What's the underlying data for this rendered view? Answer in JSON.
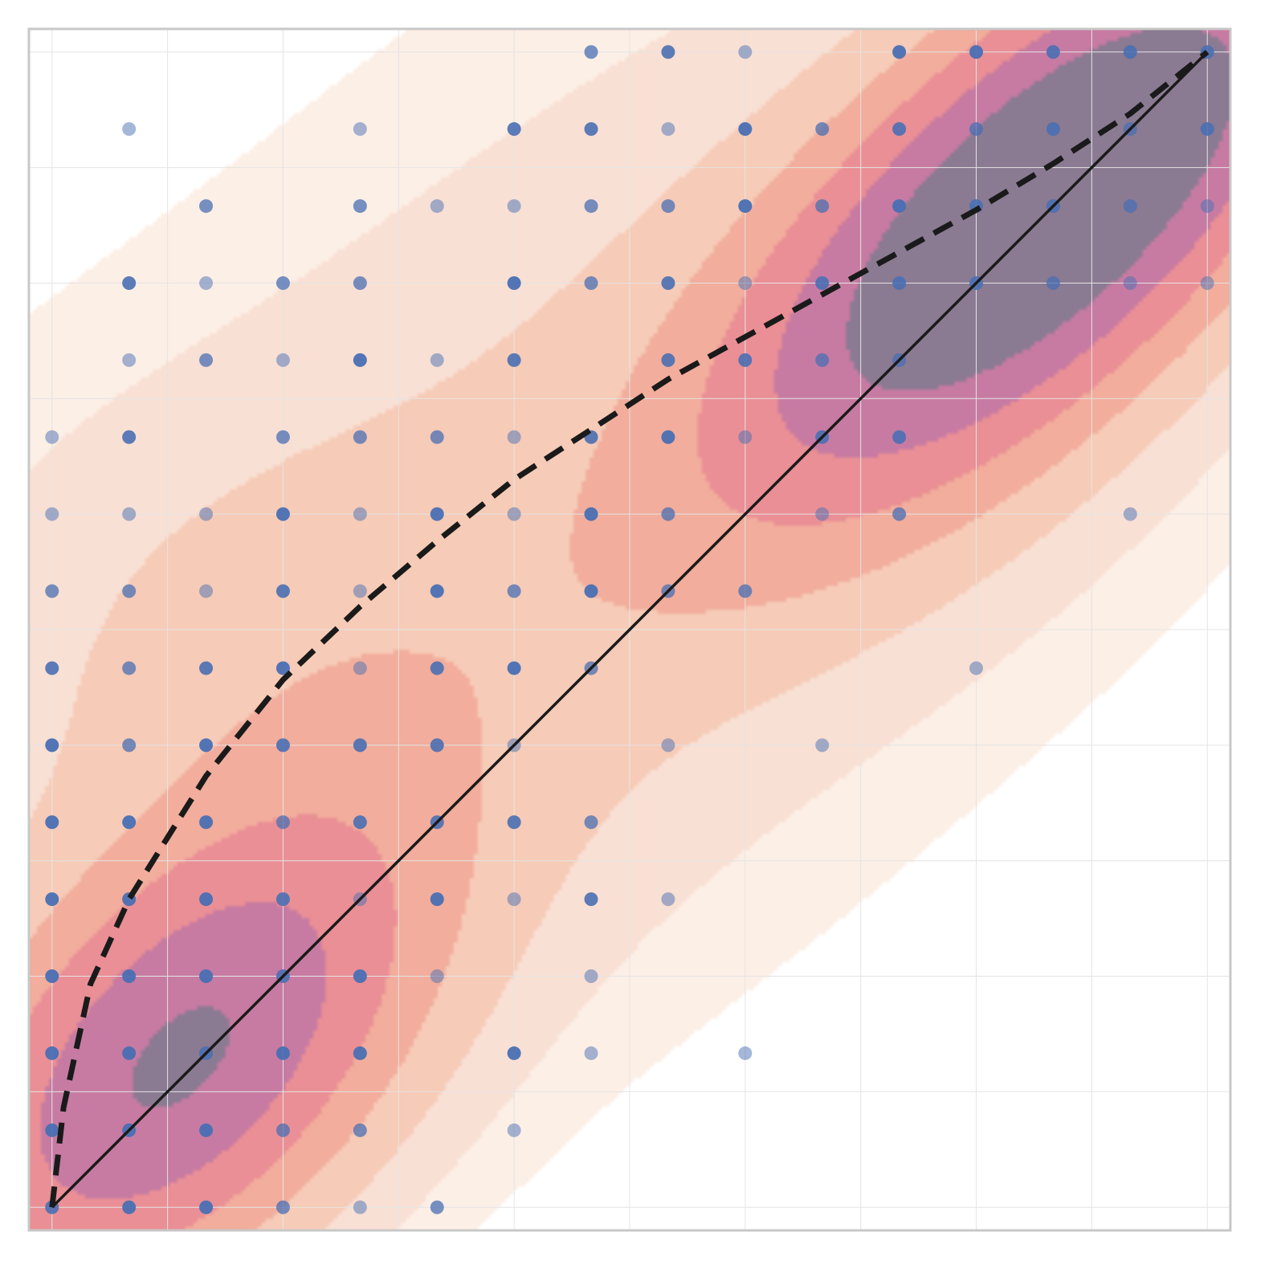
{
  "chart_data": {
    "type": "scatter",
    "title": "",
    "xlabel": "",
    "ylabel": "",
    "xlim": [
      -0.3,
      15.3
    ],
    "ylim": [
      -0.3,
      15.3
    ],
    "grid": true,
    "show_tick_labels": false,
    "colors": {
      "frame": "#c8c8c8",
      "grid": "#e4e4e4",
      "point": "#4a6fb3",
      "line": "#1a1a1a",
      "density_levels": [
        "#fcefe6",
        "#f9e0d4",
        "#f6cbb7",
        "#f2ad9c",
        "#ea8f95",
        "#c77ba2",
        "#8a7a92"
      ]
    },
    "points": [
      {
        "x": 7,
        "y": 15,
        "a": 0.75
      },
      {
        "x": 8,
        "y": 15,
        "a": 0.9
      },
      {
        "x": 9,
        "y": 15,
        "a": 0.5
      },
      {
        "x": 11,
        "y": 15,
        "a": 0.95
      },
      {
        "x": 12,
        "y": 15,
        "a": 0.95
      },
      {
        "x": 13,
        "y": 15,
        "a": 0.9
      },
      {
        "x": 14,
        "y": 15,
        "a": 0.9
      },
      {
        "x": 15,
        "y": 15,
        "a": 0.9
      },
      {
        "x": 1,
        "y": 14,
        "a": 0.5
      },
      {
        "x": 4,
        "y": 14,
        "a": 0.5
      },
      {
        "x": 6,
        "y": 14,
        "a": 0.9
      },
      {
        "x": 7,
        "y": 14,
        "a": 0.9
      },
      {
        "x": 8,
        "y": 14,
        "a": 0.5
      },
      {
        "x": 9,
        "y": 14,
        "a": 0.95
      },
      {
        "x": 10,
        "y": 14,
        "a": 0.75
      },
      {
        "x": 11,
        "y": 14,
        "a": 0.9
      },
      {
        "x": 12,
        "y": 14,
        "a": 0.75
      },
      {
        "x": 13,
        "y": 14,
        "a": 0.9
      },
      {
        "x": 14,
        "y": 14,
        "a": 0.75
      },
      {
        "x": 15,
        "y": 14,
        "a": 0.9
      },
      {
        "x": 2,
        "y": 13,
        "a": 0.75
      },
      {
        "x": 4,
        "y": 13,
        "a": 0.75
      },
      {
        "x": 5,
        "y": 13,
        "a": 0.5
      },
      {
        "x": 6,
        "y": 13,
        "a": 0.5
      },
      {
        "x": 7,
        "y": 13,
        "a": 0.75
      },
      {
        "x": 8,
        "y": 13,
        "a": 0.75
      },
      {
        "x": 9,
        "y": 13,
        "a": 0.95
      },
      {
        "x": 10,
        "y": 13,
        "a": 0.75
      },
      {
        "x": 11,
        "y": 13,
        "a": 0.95
      },
      {
        "x": 12,
        "y": 13,
        "a": 0.9
      },
      {
        "x": 13,
        "y": 13,
        "a": 0.9
      },
      {
        "x": 14,
        "y": 13,
        "a": 0.75
      },
      {
        "x": 15,
        "y": 13,
        "a": 0.5
      },
      {
        "x": 1,
        "y": 12,
        "a": 0.9
      },
      {
        "x": 2,
        "y": 12,
        "a": 0.5
      },
      {
        "x": 3,
        "y": 12,
        "a": 0.75
      },
      {
        "x": 4,
        "y": 12,
        "a": 0.75
      },
      {
        "x": 6,
        "y": 12,
        "a": 0.95
      },
      {
        "x": 7,
        "y": 12,
        "a": 0.75
      },
      {
        "x": 8,
        "y": 12,
        "a": 0.9
      },
      {
        "x": 9,
        "y": 12,
        "a": 0.5
      },
      {
        "x": 10,
        "y": 12,
        "a": 0.9
      },
      {
        "x": 11,
        "y": 12,
        "a": 0.9
      },
      {
        "x": 12,
        "y": 12,
        "a": 0.9
      },
      {
        "x": 13,
        "y": 12,
        "a": 0.75
      },
      {
        "x": 14,
        "y": 12,
        "a": 0.5
      },
      {
        "x": 15,
        "y": 12,
        "a": 0.5
      },
      {
        "x": 1,
        "y": 11,
        "a": 0.5
      },
      {
        "x": 2,
        "y": 11,
        "a": 0.75
      },
      {
        "x": 3,
        "y": 11,
        "a": 0.5
      },
      {
        "x": 4,
        "y": 11,
        "a": 0.95
      },
      {
        "x": 5,
        "y": 11,
        "a": 0.5
      },
      {
        "x": 6,
        "y": 11,
        "a": 0.9
      },
      {
        "x": 8,
        "y": 11,
        "a": 0.9
      },
      {
        "x": 9,
        "y": 11,
        "a": 0.9
      },
      {
        "x": 10,
        "y": 11,
        "a": 0.75
      },
      {
        "x": 11,
        "y": 11,
        "a": 0.75
      },
      {
        "x": 0,
        "y": 10,
        "a": 0.5
      },
      {
        "x": 1,
        "y": 10,
        "a": 0.9
      },
      {
        "x": 3,
        "y": 10,
        "a": 0.75
      },
      {
        "x": 4,
        "y": 10,
        "a": 0.75
      },
      {
        "x": 5,
        "y": 10,
        "a": 0.75
      },
      {
        "x": 6,
        "y": 10,
        "a": 0.5
      },
      {
        "x": 7,
        "y": 10,
        "a": 0.9
      },
      {
        "x": 8,
        "y": 10,
        "a": 0.95
      },
      {
        "x": 9,
        "y": 10,
        "a": 0.5
      },
      {
        "x": 10,
        "y": 10,
        "a": 0.9
      },
      {
        "x": 11,
        "y": 10,
        "a": 0.9
      },
      {
        "x": 0,
        "y": 9,
        "a": 0.5
      },
      {
        "x": 1,
        "y": 9,
        "a": 0.5
      },
      {
        "x": 2,
        "y": 9,
        "a": 0.5
      },
      {
        "x": 3,
        "y": 9,
        "a": 0.95
      },
      {
        "x": 4,
        "y": 9,
        "a": 0.5
      },
      {
        "x": 5,
        "y": 9,
        "a": 0.95
      },
      {
        "x": 6,
        "y": 9,
        "a": 0.5
      },
      {
        "x": 7,
        "y": 9,
        "a": 0.95
      },
      {
        "x": 8,
        "y": 9,
        "a": 0.75
      },
      {
        "x": 10,
        "y": 9,
        "a": 0.5
      },
      {
        "x": 11,
        "y": 9,
        "a": 0.75
      },
      {
        "x": 14,
        "y": 9,
        "a": 0.5
      },
      {
        "x": 0,
        "y": 8,
        "a": 0.75
      },
      {
        "x": 1,
        "y": 8,
        "a": 0.75
      },
      {
        "x": 2,
        "y": 8,
        "a": 0.5
      },
      {
        "x": 3,
        "y": 8,
        "a": 0.9
      },
      {
        "x": 4,
        "y": 8,
        "a": 0.5
      },
      {
        "x": 5,
        "y": 8,
        "a": 0.95
      },
      {
        "x": 6,
        "y": 8,
        "a": 0.75
      },
      {
        "x": 7,
        "y": 8,
        "a": 0.95
      },
      {
        "x": 8,
        "y": 8,
        "a": 0.75
      },
      {
        "x": 9,
        "y": 8,
        "a": 0.75
      },
      {
        "x": 0,
        "y": 7,
        "a": 0.9
      },
      {
        "x": 1,
        "y": 7,
        "a": 0.75
      },
      {
        "x": 2,
        "y": 7,
        "a": 0.9
      },
      {
        "x": 3,
        "y": 7,
        "a": 0.95
      },
      {
        "x": 4,
        "y": 7,
        "a": 0.5
      },
      {
        "x": 5,
        "y": 7,
        "a": 0.9
      },
      {
        "x": 6,
        "y": 7,
        "a": 0.95
      },
      {
        "x": 7,
        "y": 7,
        "a": 0.75
      },
      {
        "x": 12,
        "y": 7,
        "a": 0.5
      },
      {
        "x": 0,
        "y": 6,
        "a": 0.95
      },
      {
        "x": 1,
        "y": 6,
        "a": 0.75
      },
      {
        "x": 2,
        "y": 6,
        "a": 0.95
      },
      {
        "x": 3,
        "y": 6,
        "a": 0.9
      },
      {
        "x": 4,
        "y": 6,
        "a": 0.9
      },
      {
        "x": 5,
        "y": 6,
        "a": 0.9
      },
      {
        "x": 6,
        "y": 6,
        "a": 0.5
      },
      {
        "x": 8,
        "y": 6,
        "a": 0.5
      },
      {
        "x": 10,
        "y": 6,
        "a": 0.5
      },
      {
        "x": 0,
        "y": 5,
        "a": 0.95
      },
      {
        "x": 1,
        "y": 5,
        "a": 0.95
      },
      {
        "x": 2,
        "y": 5,
        "a": 0.95
      },
      {
        "x": 3,
        "y": 5,
        "a": 0.75
      },
      {
        "x": 4,
        "y": 5,
        "a": 0.9
      },
      {
        "x": 5,
        "y": 5,
        "a": 0.9
      },
      {
        "x": 6,
        "y": 5,
        "a": 0.9
      },
      {
        "x": 7,
        "y": 5,
        "a": 0.75
      },
      {
        "x": 0,
        "y": 4,
        "a": 0.95
      },
      {
        "x": 1,
        "y": 4,
        "a": 0.95
      },
      {
        "x": 2,
        "y": 4,
        "a": 0.95
      },
      {
        "x": 3,
        "y": 4,
        "a": 0.9
      },
      {
        "x": 4,
        "y": 4,
        "a": 0.5
      },
      {
        "x": 5,
        "y": 4,
        "a": 0.95
      },
      {
        "x": 6,
        "y": 4,
        "a": 0.5
      },
      {
        "x": 7,
        "y": 4,
        "a": 0.9
      },
      {
        "x": 8,
        "y": 4,
        "a": 0.5
      },
      {
        "x": 0,
        "y": 3,
        "a": 0.95
      },
      {
        "x": 1,
        "y": 3,
        "a": 0.95
      },
      {
        "x": 2,
        "y": 3,
        "a": 0.95
      },
      {
        "x": 3,
        "y": 3,
        "a": 0.9
      },
      {
        "x": 4,
        "y": 3,
        "a": 0.95
      },
      {
        "x": 5,
        "y": 3,
        "a": 0.5
      },
      {
        "x": 7,
        "y": 3,
        "a": 0.5
      },
      {
        "x": 0,
        "y": 2,
        "a": 0.95
      },
      {
        "x": 1,
        "y": 2,
        "a": 0.95
      },
      {
        "x": 2,
        "y": 2,
        "a": 0.9
      },
      {
        "x": 3,
        "y": 2,
        "a": 0.95
      },
      {
        "x": 4,
        "y": 2,
        "a": 0.95
      },
      {
        "x": 6,
        "y": 2,
        "a": 0.95
      },
      {
        "x": 7,
        "y": 2,
        "a": 0.5
      },
      {
        "x": 9,
        "y": 2,
        "a": 0.5
      },
      {
        "x": 0,
        "y": 1,
        "a": 0.95
      },
      {
        "x": 1,
        "y": 1,
        "a": 0.95
      },
      {
        "x": 2,
        "y": 1,
        "a": 0.95
      },
      {
        "x": 3,
        "y": 1,
        "a": 0.75
      },
      {
        "x": 4,
        "y": 1,
        "a": 0.75
      },
      {
        "x": 6,
        "y": 1,
        "a": 0.5
      },
      {
        "x": 0,
        "y": 0,
        "a": 0.9
      },
      {
        "x": 1,
        "y": 0,
        "a": 0.95
      },
      {
        "x": 2,
        "y": 0,
        "a": 0.95
      },
      {
        "x": 3,
        "y": 0,
        "a": 0.75
      },
      {
        "x": 4,
        "y": 0,
        "a": 0.5
      },
      {
        "x": 5,
        "y": 0,
        "a": 0.75
      }
    ],
    "series": [
      {
        "style": "solid",
        "x": [
          0,
          15
        ],
        "y": [
          0,
          15
        ]
      },
      {
        "style": "dashed",
        "x": [
          0,
          0.15,
          0.5,
          1.0,
          1.5,
          2.0,
          3.0,
          4.0,
          5.0,
          6.0,
          7.0,
          8.0,
          9.0,
          10.0,
          11.0,
          12.0,
          13.0,
          14.0,
          15.0
        ],
        "y": [
          0,
          1.3,
          2.9,
          4.0,
          4.8,
          5.6,
          6.85,
          7.8,
          8.65,
          9.45,
          10.1,
          10.75,
          11.3,
          11.85,
          12.4,
          12.95,
          13.55,
          14.2,
          15.0
        ]
      }
    ],
    "density": [
      {
        "cx": 1.6,
        "cy": 1.8,
        "sx": 2.6,
        "sy": 1.5,
        "angle": 45,
        "w": 1.0
      },
      {
        "cx": 13.2,
        "cy": 13.3,
        "sx": 3.2,
        "sy": 1.4,
        "angle": 42,
        "w": 1.35
      },
      {
        "cx": 6.8,
        "cy": 9.2,
        "sx": 7.5,
        "sy": 3.2,
        "angle": 40,
        "w": 0.22
      },
      {
        "cx": 3.2,
        "cy": 7.0,
        "sx": 2.2,
        "sy": 3.0,
        "angle": 80,
        "w": 0.12
      },
      {
        "cx": 11.0,
        "cy": 10.5,
        "sx": 3.0,
        "sy": 1.8,
        "angle": 40,
        "w": 0.18
      }
    ]
  }
}
